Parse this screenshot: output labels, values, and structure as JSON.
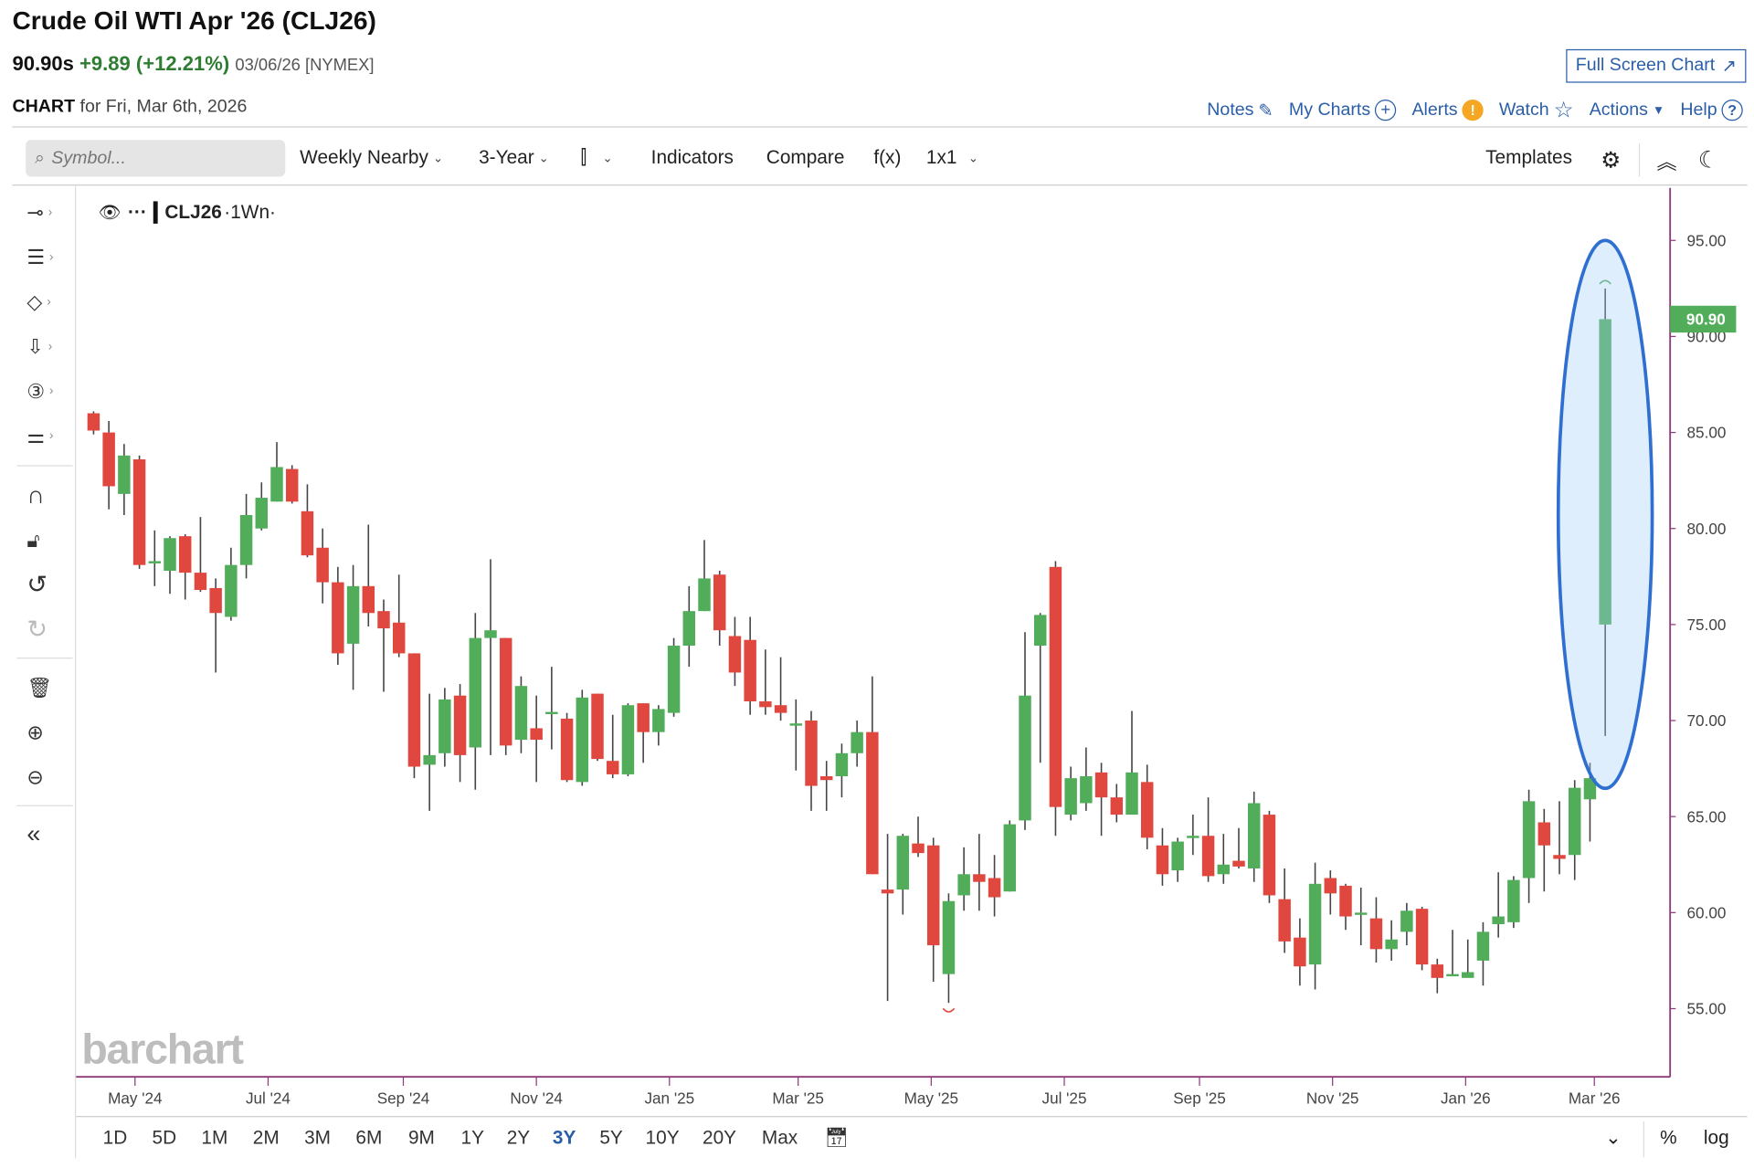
{
  "header": {
    "title": "Crude Oil WTI Apr '26 (CLJ26)",
    "last": "90.90s",
    "change": "+9.89 (+12.21%)",
    "meta": "03/06/26 [NYMEX]",
    "full_screen": "Full Screen Chart",
    "chart_label": "CHART",
    "chart_for": "for Fri, Mar 6th, 2026"
  },
  "links": [
    {
      "label": "Notes",
      "icon": "edit-icon"
    },
    {
      "label": "My Charts",
      "icon": "plus-circle-icon"
    },
    {
      "label": "Alerts",
      "icon": "alert-icon"
    },
    {
      "label": "Watch",
      "icon": "star-icon"
    },
    {
      "label": "Actions",
      "icon": "caret-down-icon"
    },
    {
      "label": "Help",
      "icon": "help-icon"
    }
  ],
  "toolbar": {
    "search_placeholder": "Symbol...",
    "period": "Weekly Nearby",
    "range": "3-Year",
    "indicators": "Indicators",
    "compare": "Compare",
    "fx": "f(x)",
    "layout": "1x1",
    "templates": "Templates"
  },
  "legend": {
    "symbol": "CLJ26",
    "interval": "·1Wn·",
    "dots": "···"
  },
  "watermark": "barchart",
  "ranges": [
    "1D",
    "5D",
    "1M",
    "2M",
    "3M",
    "6M",
    "9M",
    "1Y",
    "2Y",
    "3Y",
    "5Y",
    "10Y",
    "20Y",
    "Max"
  ],
  "active_range": "3Y",
  "bottom_right": {
    "pct": "%",
    "log": "log"
  },
  "colors": {
    "up": "#52ad5a",
    "down": "#e0483f",
    "accent": "#2a5ea8",
    "axis": "#8b3a7a",
    "highlight": "#2f6fd1"
  },
  "chart_data": {
    "type": "candlestick",
    "interval": "weekly",
    "last_date": "2026-03-06",
    "last_price": "90.90",
    "ylim": [
      52,
      97
    ],
    "y_ticks": [
      "55.00",
      "60.00",
      "65.00",
      "70.00",
      "75.00",
      "80.00",
      "85.00",
      "90.00",
      "95.00"
    ],
    "x_ticks": [
      {
        "label": "May '24",
        "date": "2024-05-01"
      },
      {
        "label": "Jul '24",
        "date": "2024-07-01"
      },
      {
        "label": "Sep '24",
        "date": "2024-09-01"
      },
      {
        "label": "Nov '24",
        "date": "2024-11-01"
      },
      {
        "label": "Jan '25",
        "date": "2025-01-01"
      },
      {
        "label": "Mar '25",
        "date": "2025-03-01"
      },
      {
        "label": "May '25",
        "date": "2025-05-01"
      },
      {
        "label": "Jul '25",
        "date": "2025-07-01"
      },
      {
        "label": "Sep '25",
        "date": "2025-09-01"
      },
      {
        "label": "Nov '25",
        "date": "2025-11-01"
      },
      {
        "label": "Jan '26",
        "date": "2026-01-01"
      },
      {
        "label": "Mar '26",
        "date": "2026-03-01"
      }
    ],
    "ohlc": [
      [
        86.0,
        86.1,
        84.9,
        85.1
      ],
      [
        85.0,
        85.6,
        81.0,
        82.2
      ],
      [
        81.8,
        84.4,
        80.7,
        83.8
      ],
      [
        83.6,
        83.8,
        77.9,
        78.1
      ],
      [
        78.2,
        79.9,
        77.0,
        78.3
      ],
      [
        77.8,
        79.6,
        76.6,
        79.5
      ],
      [
        79.6,
        79.7,
        76.3,
        77.7
      ],
      [
        77.7,
        80.6,
        76.7,
        76.8
      ],
      [
        76.9,
        77.4,
        72.5,
        75.6
      ],
      [
        75.4,
        79.0,
        75.2,
        78.1
      ],
      [
        78.1,
        81.8,
        77.4,
        80.7
      ],
      [
        80.0,
        82.4,
        79.9,
        81.6
      ],
      [
        81.4,
        84.5,
        81.4,
        83.2
      ],
      [
        83.1,
        83.3,
        81.3,
        81.4
      ],
      [
        80.9,
        82.3,
        78.5,
        78.6
      ],
      [
        79.0,
        80.0,
        76.1,
        77.2
      ],
      [
        77.2,
        78.0,
        72.9,
        73.5
      ],
      [
        74.0,
        78.1,
        71.6,
        77.0
      ],
      [
        77.0,
        80.2,
        74.9,
        75.6
      ],
      [
        75.7,
        76.3,
        71.5,
        74.8
      ],
      [
        75.1,
        77.6,
        73.3,
        73.5
      ],
      [
        73.5,
        73.5,
        67.0,
        67.6
      ],
      [
        67.7,
        71.4,
        65.3,
        68.2
      ],
      [
        68.3,
        71.7,
        67.6,
        71.1
      ],
      [
        71.3,
        71.9,
        66.8,
        68.2
      ],
      [
        68.6,
        75.6,
        66.4,
        74.3
      ],
      [
        74.3,
        78.4,
        68.2,
        74.7
      ],
      [
        74.3,
        74.3,
        68.2,
        68.7
      ],
      [
        69.0,
        72.3,
        68.3,
        71.8
      ],
      [
        69.6,
        71.3,
        66.8,
        69.0
      ],
      [
        70.4,
        72.8,
        68.5,
        70.45
      ],
      [
        70.1,
        70.4,
        66.8,
        66.9
      ],
      [
        66.8,
        71.6,
        66.6,
        71.2
      ],
      [
        71.4,
        71.4,
        67.9,
        68.0
      ],
      [
        67.9,
        70.3,
        67.0,
        67.2
      ],
      [
        67.2,
        70.9,
        67.1,
        70.8
      ],
      [
        70.9,
        70.9,
        67.8,
        69.4
      ],
      [
        69.4,
        70.8,
        68.7,
        70.6
      ],
      [
        70.4,
        74.3,
        70.2,
        73.9
      ],
      [
        73.9,
        77.0,
        72.8,
        75.7
      ],
      [
        75.7,
        79.4,
        75.7,
        77.4
      ],
      [
        77.6,
        77.8,
        73.9,
        74.7
      ],
      [
        74.4,
        75.4,
        71.8,
        72.5
      ],
      [
        74.2,
        75.4,
        70.3,
        71.0
      ],
      [
        71.0,
        73.7,
        70.3,
        70.7
      ],
      [
        70.8,
        73.3,
        70.0,
        70.4
      ],
      [
        69.8,
        71.1,
        67.4,
        69.85
      ],
      [
        70.0,
        70.5,
        65.3,
        66.6
      ],
      [
        67.1,
        67.9,
        65.3,
        66.9
      ],
      [
        67.1,
        68.8,
        66.0,
        68.3
      ],
      [
        68.3,
        70.0,
        67.6,
        69.4
      ],
      [
        69.4,
        72.3,
        62.0,
        62.0
      ],
      [
        61.2,
        64.1,
        55.4,
        61.0
      ],
      [
        61.2,
        64.1,
        59.9,
        64.0
      ],
      [
        63.6,
        65.0,
        62.9,
        63.1
      ],
      [
        63.5,
        63.9,
        56.4,
        58.3
      ],
      [
        56.8,
        61.0,
        55.3,
        60.6
      ],
      [
        60.9,
        63.4,
        60.1,
        62.0
      ],
      [
        62.0,
        64.1,
        60.1,
        61.6
      ],
      [
        61.8,
        63.0,
        59.8,
        60.8
      ],
      [
        61.1,
        64.8,
        61.1,
        64.6
      ],
      [
        64.8,
        74.6,
        64.3,
        71.3
      ],
      [
        73.9,
        75.6,
        67.8,
        75.5
      ],
      [
        78.0,
        78.3,
        64.0,
        65.5
      ],
      [
        65.1,
        67.6,
        64.8,
        67.0
      ],
      [
        65.7,
        68.6,
        65.3,
        67.1
      ],
      [
        67.3,
        67.8,
        64.0,
        66.0
      ],
      [
        66.0,
        66.7,
        64.7,
        65.1
      ],
      [
        65.1,
        70.5,
        65.1,
        67.3
      ],
      [
        66.8,
        67.7,
        63.3,
        63.9
      ],
      [
        63.5,
        64.4,
        61.4,
        62.0
      ],
      [
        62.2,
        63.9,
        61.6,
        63.7
      ],
      [
        63.9,
        65.1,
        63.0,
        64.0
      ],
      [
        64.0,
        66.0,
        61.6,
        61.9
      ],
      [
        62.0,
        64.1,
        61.5,
        62.5
      ],
      [
        62.7,
        64.4,
        62.3,
        62.4
      ],
      [
        62.3,
        66.3,
        61.6,
        65.7
      ],
      [
        65.1,
        65.3,
        60.5,
        60.9
      ],
      [
        60.7,
        62.3,
        57.9,
        58.5
      ],
      [
        58.7,
        59.7,
        56.2,
        57.2
      ],
      [
        57.3,
        62.6,
        56.0,
        61.5
      ],
      [
        61.8,
        62.2,
        59.9,
        61.0
      ],
      [
        61.4,
        61.5,
        59.1,
        59.8
      ],
      [
        59.9,
        61.3,
        58.3,
        60.0
      ],
      [
        59.7,
        60.8,
        57.4,
        58.1
      ],
      [
        58.1,
        59.6,
        57.5,
        58.6
      ],
      [
        59.0,
        60.5,
        58.3,
        60.1
      ],
      [
        60.2,
        60.3,
        57.0,
        57.3
      ],
      [
        57.3,
        57.6,
        55.8,
        56.6
      ],
      [
        56.7,
        59.1,
        56.7,
        56.8
      ],
      [
        56.6,
        58.6,
        56.7,
        56.9
      ],
      [
        57.5,
        59.5,
        56.2,
        59.0
      ],
      [
        59.4,
        62.1,
        58.7,
        59.8
      ],
      [
        59.5,
        61.9,
        59.2,
        61.7
      ],
      [
        61.8,
        66.4,
        60.5,
        65.8
      ],
      [
        64.7,
        65.4,
        61.1,
        63.5
      ],
      [
        63.0,
        65.8,
        62.0,
        62.8
      ],
      [
        63.0,
        66.9,
        61.7,
        66.5
      ],
      [
        65.9,
        67.8,
        63.7,
        67.0
      ],
      [
        75.0,
        92.5,
        69.2,
        90.9
      ]
    ]
  }
}
